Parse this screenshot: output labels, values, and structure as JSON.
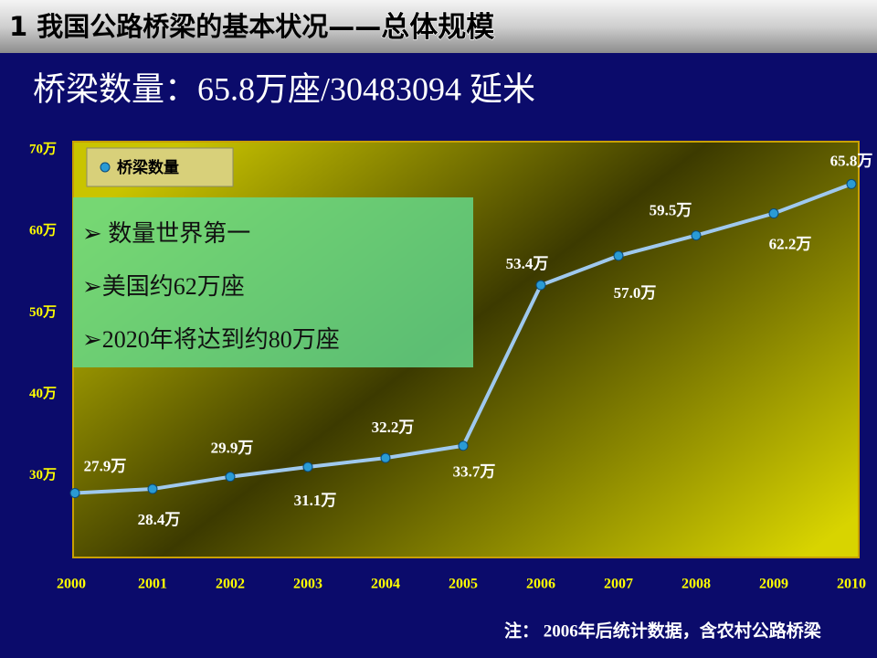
{
  "slide": {
    "heading": "1  我国公路桥梁的基本状况——",
    "heading_emphasis": "总体规模",
    "subtitle": "桥梁数量：65.8万座/30483094 延米",
    "notes": [
      "➢ 数量世界第一",
      "➢美国约62万座",
      "➢2020年将达到约80万座"
    ],
    "footnote": "注： 2006年后统计数据，含农村公路桥梁"
  },
  "chart_data": {
    "type": "line",
    "categories": [
      "2000",
      "2001",
      "2002",
      "2003",
      "2004",
      "2005",
      "2006",
      "2007",
      "2008",
      "2009",
      "2010"
    ],
    "series": [
      {
        "name": "桥梁数量",
        "color": "#9fc9ee",
        "values": [
          27.9,
          28.4,
          29.9,
          31.1,
          32.2,
          33.7,
          53.4,
          57.0,
          59.5,
          62.2,
          65.8
        ],
        "value_labels": [
          "27.9万",
          "28.4万",
          "29.9万",
          "31.1万",
          "32.2万",
          "33.7万",
          "53.4万",
          "57.0万",
          "59.5万",
          "62.2万",
          "65.8万"
        ]
      }
    ],
    "ylim": [
      20,
      71
    ],
    "yticks": [
      {
        "value": 30,
        "label": "30万"
      },
      {
        "value": 40,
        "label": "40万"
      },
      {
        "value": 50,
        "label": "50万"
      },
      {
        "value": 60,
        "label": "60万"
      },
      {
        "value": 70,
        "label": "70万"
      }
    ],
    "grid": false
  }
}
